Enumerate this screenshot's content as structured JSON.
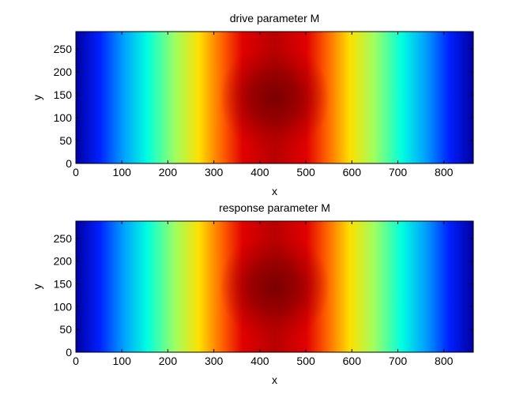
{
  "chart_data": [
    {
      "type": "heatmap",
      "title": "drive parameter M",
      "xlabel": "x",
      "ylabel": "y",
      "xlim": [
        0,
        864
      ],
      "ylim": [
        0,
        288
      ],
      "xticks": [
        0,
        100,
        200,
        300,
        400,
        500,
        600,
        700,
        800
      ],
      "yticks": [
        0,
        50,
        100,
        150,
        200,
        250
      ],
      "colormap": "jet",
      "peak": {
        "x": 432,
        "y": 144
      },
      "grid": false
    },
    {
      "type": "heatmap",
      "title": "response parameter M",
      "xlabel": "x",
      "ylabel": "y",
      "xlim": [
        0,
        864
      ],
      "ylim": [
        0,
        288
      ],
      "xticks": [
        0,
        100,
        200,
        300,
        400,
        500,
        600,
        700,
        800
      ],
      "yticks": [
        0,
        50,
        100,
        150,
        200,
        250
      ],
      "colormap": "jet",
      "peak": {
        "x": 432,
        "y": 144
      },
      "grid": false
    }
  ]
}
